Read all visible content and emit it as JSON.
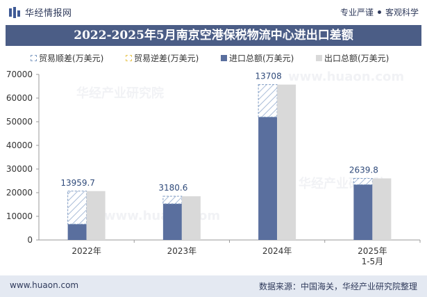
{
  "header": {
    "brand": "华经情报网",
    "slogan_left": "专业严谨",
    "slogan_right": "客观科学"
  },
  "chart_data": {
    "type": "bar",
    "title": "2022-2025年5月南京空港保税物流中心进出口差额",
    "categories": [
      "2022年",
      "2023年",
      "2024年",
      "2025年\n1-5月"
    ],
    "ylim": [
      0,
      70000
    ],
    "yticks": [
      0,
      10000,
      20000,
      30000,
      40000,
      50000,
      60000,
      70000
    ],
    "series": [
      {
        "name": "贸易顺差(万美元)",
        "values": [
          13959.7,
          3180.6,
          13708,
          2639.8
        ],
        "color": "#7f9bc2",
        "style": "hatched"
      },
      {
        "name": "贸易逆差(万美元)",
        "values": [
          0,
          0,
          0,
          0
        ],
        "color": "#e8c550",
        "style": "hatched"
      },
      {
        "name": "进口总额(万美元)",
        "values": [
          6700,
          15300,
          52000,
          23400
        ],
        "color": "#5a6f9e"
      },
      {
        "name": "出口总额(万美元)",
        "values": [
          20659.7,
          18480.6,
          65708,
          26039.8
        ],
        "color": "#d9d9d9"
      }
    ],
    "data_labels": [
      "13959.7",
      "3180.6",
      "13708",
      "2639.8"
    ]
  },
  "watermarks": [
    "华经产业研究院",
    "www.huaon.com"
  ],
  "footer": {
    "website": "www.huaon.com",
    "source": "数据来源：中国海关，华经产业研究院整理"
  }
}
